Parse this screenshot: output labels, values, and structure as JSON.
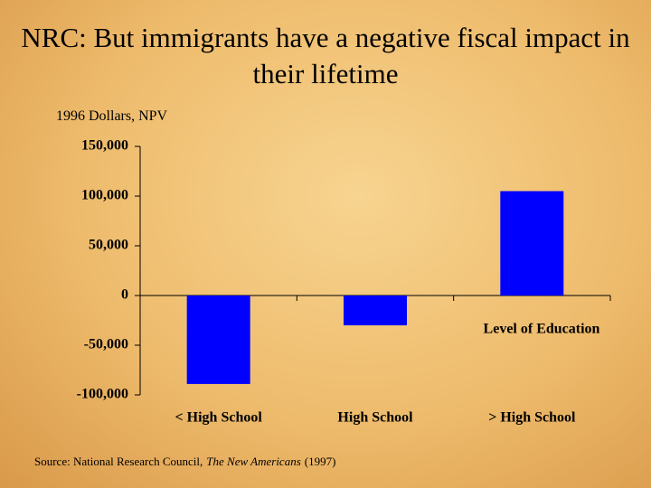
{
  "chart_data": {
    "type": "bar",
    "title": "NRC: But immigrants have a negative fiscal impact in their lifetime",
    "subtitle": "1996 Dollars, NPV",
    "x_label": "Level of Education",
    "source": [
      "Source: National Research Council,",
      "The New Americans",
      "(1997)"
    ],
    "categories": [
      "< High School",
      "High School",
      "> High School"
    ],
    "values": [
      -89000,
      -30000,
      105000
    ],
    "color": "#0000ff",
    "ylim": [
      -100000,
      150000
    ],
    "yticks": [
      {
        "value": -100000,
        "label": "-100,000"
      },
      {
        "value": -50000,
        "label": "-50,000"
      },
      0,
      {
        "value": 50000,
        "label": "50,000"
      },
      {
        "value": 100000,
        "label": "100,000"
      },
      {
        "value": 150000,
        "label": "150,000"
      }
    ]
  }
}
